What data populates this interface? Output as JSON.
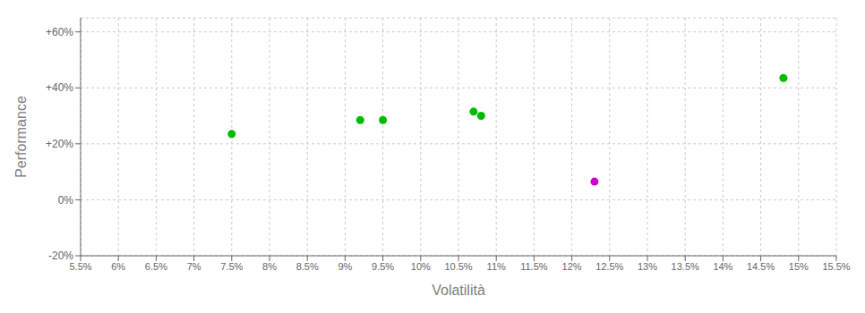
{
  "chart_data": {
    "type": "scatter",
    "x_label": "Volatilità",
    "y_label": "Performance",
    "xlim": [
      0.055,
      0.155
    ],
    "ylim": [
      -0.2,
      0.65
    ],
    "xticks": [
      {
        "value": 0.055,
        "label": "5.5%"
      },
      {
        "value": 0.06,
        "label": "6%"
      },
      {
        "value": 0.065,
        "label": "6.5%"
      },
      {
        "value": 0.07,
        "label": "7%"
      },
      {
        "value": 0.075,
        "label": "7.5%"
      },
      {
        "value": 0.08,
        "label": "8%"
      },
      {
        "value": 0.085,
        "label": "8.5%"
      },
      {
        "value": 0.09,
        "label": "9%"
      },
      {
        "value": 0.095,
        "label": "9.5%"
      },
      {
        "value": 0.1,
        "label": "10%"
      },
      {
        "value": 0.105,
        "label": "10.5%"
      },
      {
        "value": 0.11,
        "label": "11%"
      },
      {
        "value": 0.115,
        "label": "11.5%"
      },
      {
        "value": 0.12,
        "label": "12%"
      },
      {
        "value": 0.125,
        "label": "12.5%"
      },
      {
        "value": 0.13,
        "label": "13%"
      },
      {
        "value": 0.135,
        "label": "13.5%"
      },
      {
        "value": 0.14,
        "label": "14%"
      },
      {
        "value": 0.145,
        "label": "14.5%"
      },
      {
        "value": 0.15,
        "label": "15%"
      },
      {
        "value": 0.155,
        "label": "15.5%"
      }
    ],
    "yticks": [
      {
        "value": -0.2,
        "label": "-20%"
      },
      {
        "value": 0.0,
        "label": "0%"
      },
      {
        "value": 0.2,
        "label": "+20%"
      },
      {
        "value": 0.4,
        "label": "+40%"
      },
      {
        "value": 0.6,
        "label": "+60%"
      }
    ],
    "grid": true,
    "series": [
      {
        "color": "#00bb00",
        "x": [
          0.075,
          0.092,
          0.095,
          0.107,
          0.108,
          0.148
        ],
        "values": [
          0.235,
          0.285,
          0.285,
          0.315,
          0.3,
          0.435
        ]
      },
      {
        "color": "#cc00cc",
        "x": [
          0.123
        ],
        "values": [
          0.065
        ]
      }
    ]
  }
}
